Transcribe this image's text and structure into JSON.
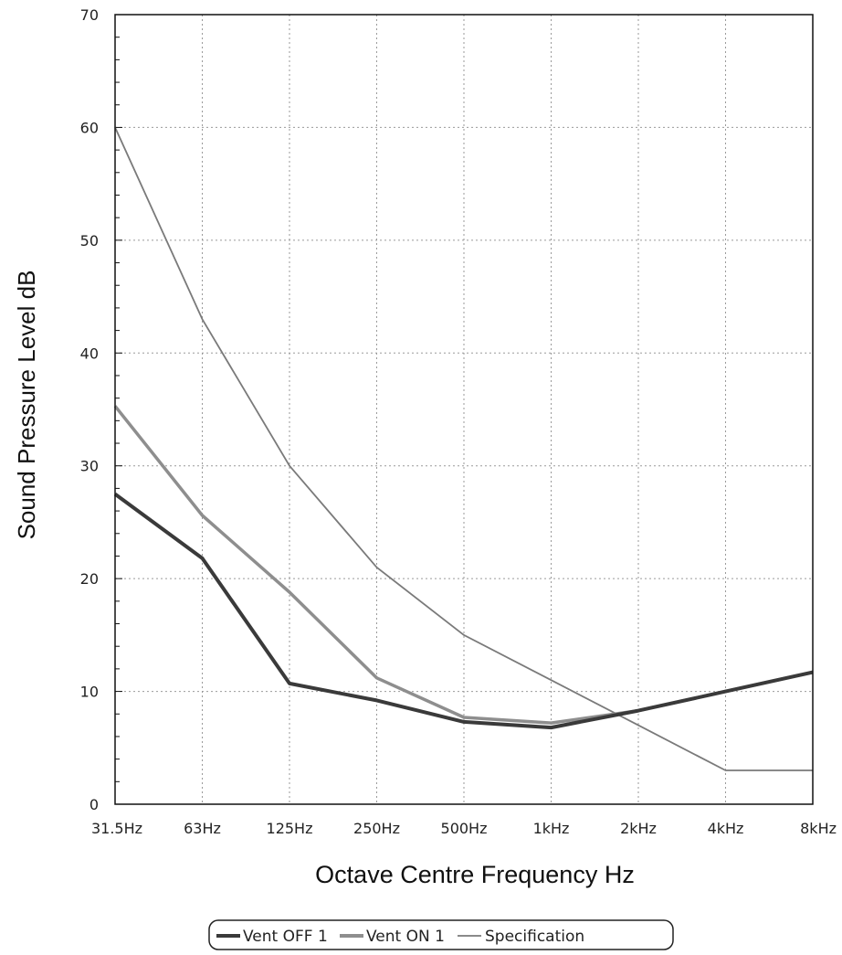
{
  "chart_data": {
    "type": "line",
    "title": "",
    "xlabel": "Octave Centre Frequency Hz",
    "ylabel": "Sound Pressure Level dB",
    "categories": [
      "31.5Hz",
      "63Hz",
      "125Hz",
      "250Hz",
      "500Hz",
      "1kHz",
      "2kHz",
      "4kHz",
      "8kHz"
    ],
    "yticks": [
      "0",
      "10",
      "20",
      "30",
      "40",
      "50",
      "60",
      "70"
    ],
    "ylim": [
      0,
      70
    ],
    "grid": true,
    "legend_position": "bottom",
    "series": [
      {
        "name": "Vent OFF 1",
        "color": "#3a3a3a",
        "values": [
          27.5,
          21.8,
          10.7,
          9.2,
          7.3,
          6.8,
          8.3,
          10.0,
          11.7
        ]
      },
      {
        "name": "Vent ON 1",
        "color": "#8e8e8e",
        "values": [
          35.3,
          25.6,
          18.8,
          11.2,
          7.7,
          7.2,
          8.3,
          10.0,
          11.7
        ]
      },
      {
        "name": "Specification",
        "color": "#7a7a7a",
        "values": [
          60,
          43,
          30,
          21,
          15,
          11,
          7,
          3,
          3
        ]
      }
    ]
  }
}
